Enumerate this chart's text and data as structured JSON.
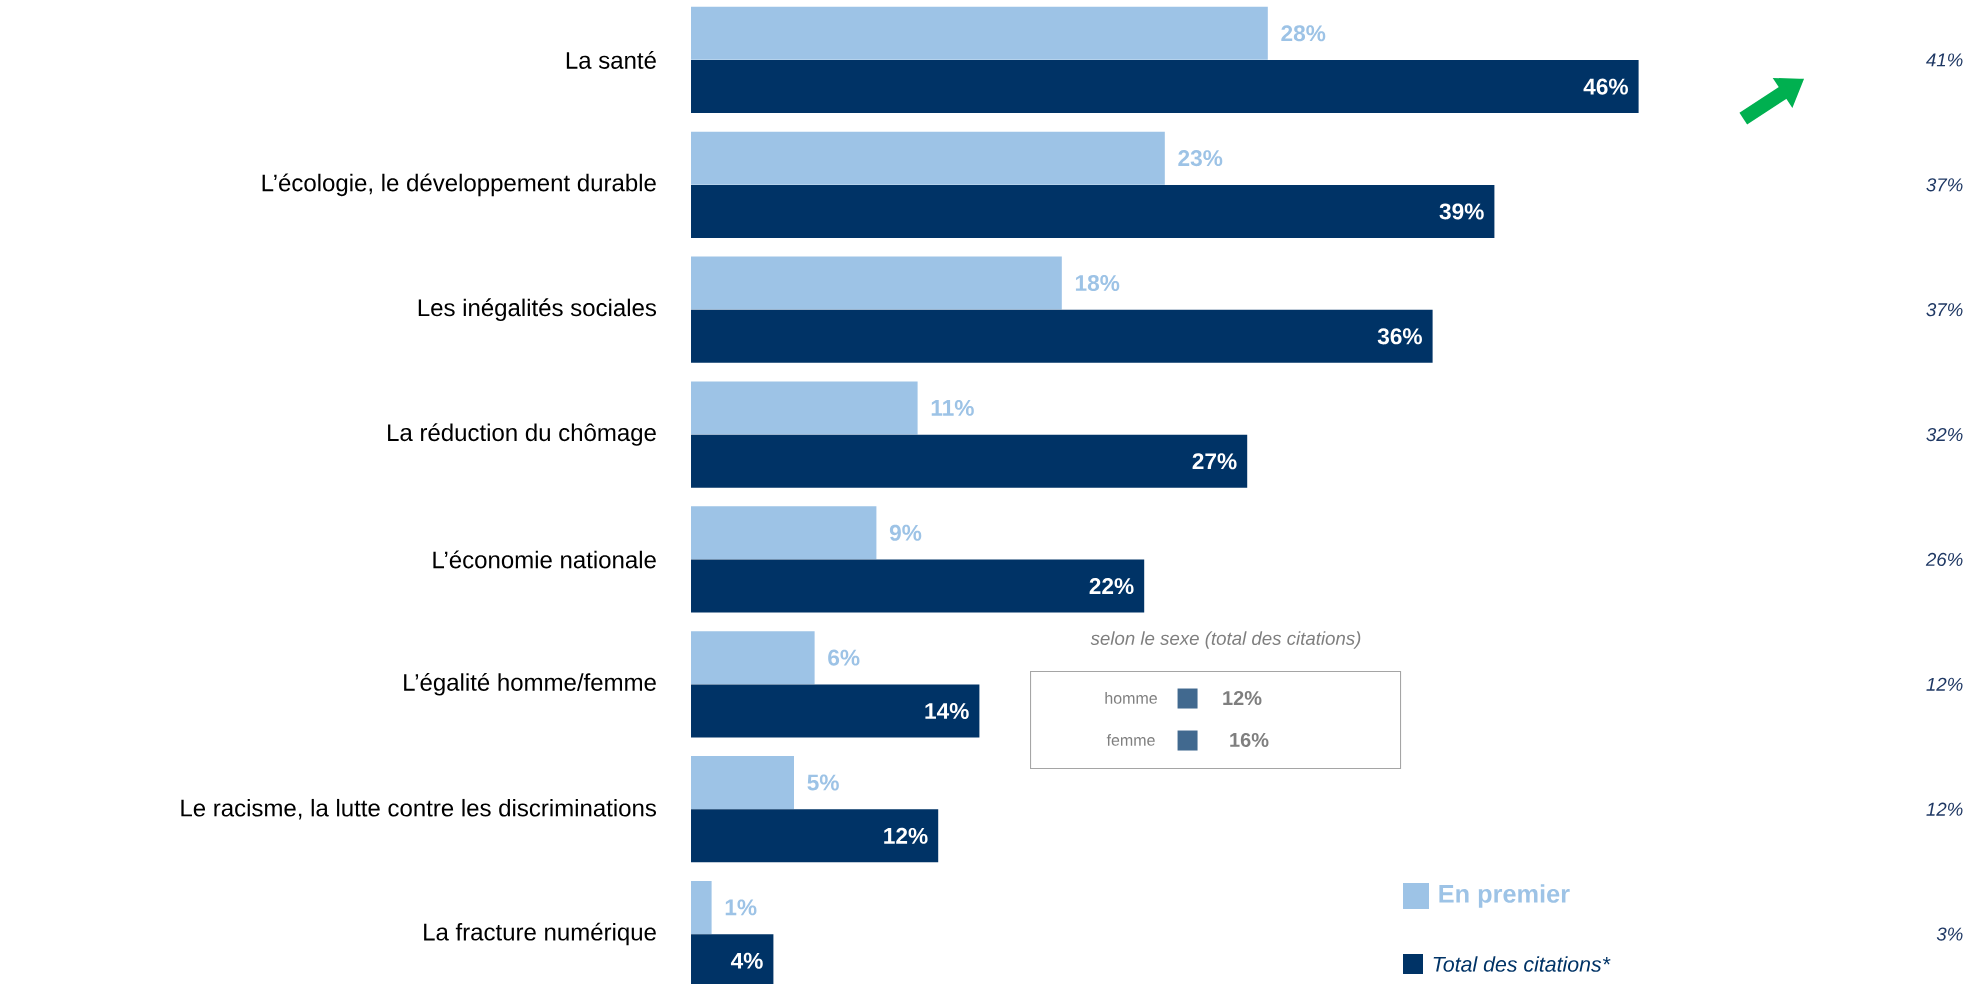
{
  "chart_data": {
    "type": "bar",
    "orientation": "horizontal",
    "categories": [
      "La santé",
      "L’écologie, le développement durable",
      "Les inégalités sociales",
      "La réduction du chômage",
      "L’économie nationale",
      "L’égalité homme/femme",
      "Le racisme, la lutte contre les discriminations",
      "La fracture numérique"
    ],
    "series": [
      {
        "name": "En premier",
        "color": "#9dc3e6",
        "values": [
          28,
          23,
          18,
          11,
          9,
          6,
          5,
          1
        ],
        "value_labels": [
          "28%",
          "23%",
          "18%",
          "11%",
          "9%",
          "6%",
          "5%",
          "1%"
        ]
      },
      {
        "name": "Total des citations*",
        "color": "#003366",
        "values": [
          46,
          39,
          36,
          27,
          22,
          14,
          12,
          4
        ],
        "value_labels": [
          "46%",
          "39%",
          "36%",
          "27%",
          "22%",
          "14%",
          "12%",
          "4%"
        ]
      }
    ],
    "legend": "bottom right",
    "annotations": [
      "41%",
      "37%",
      "37%",
      "32%",
      "26%",
      "12%",
      "12%",
      "3%",
      "selon le sexe (total des citations)",
      "homme",
      "12%",
      "femme",
      "16%"
    ]
  }
}
